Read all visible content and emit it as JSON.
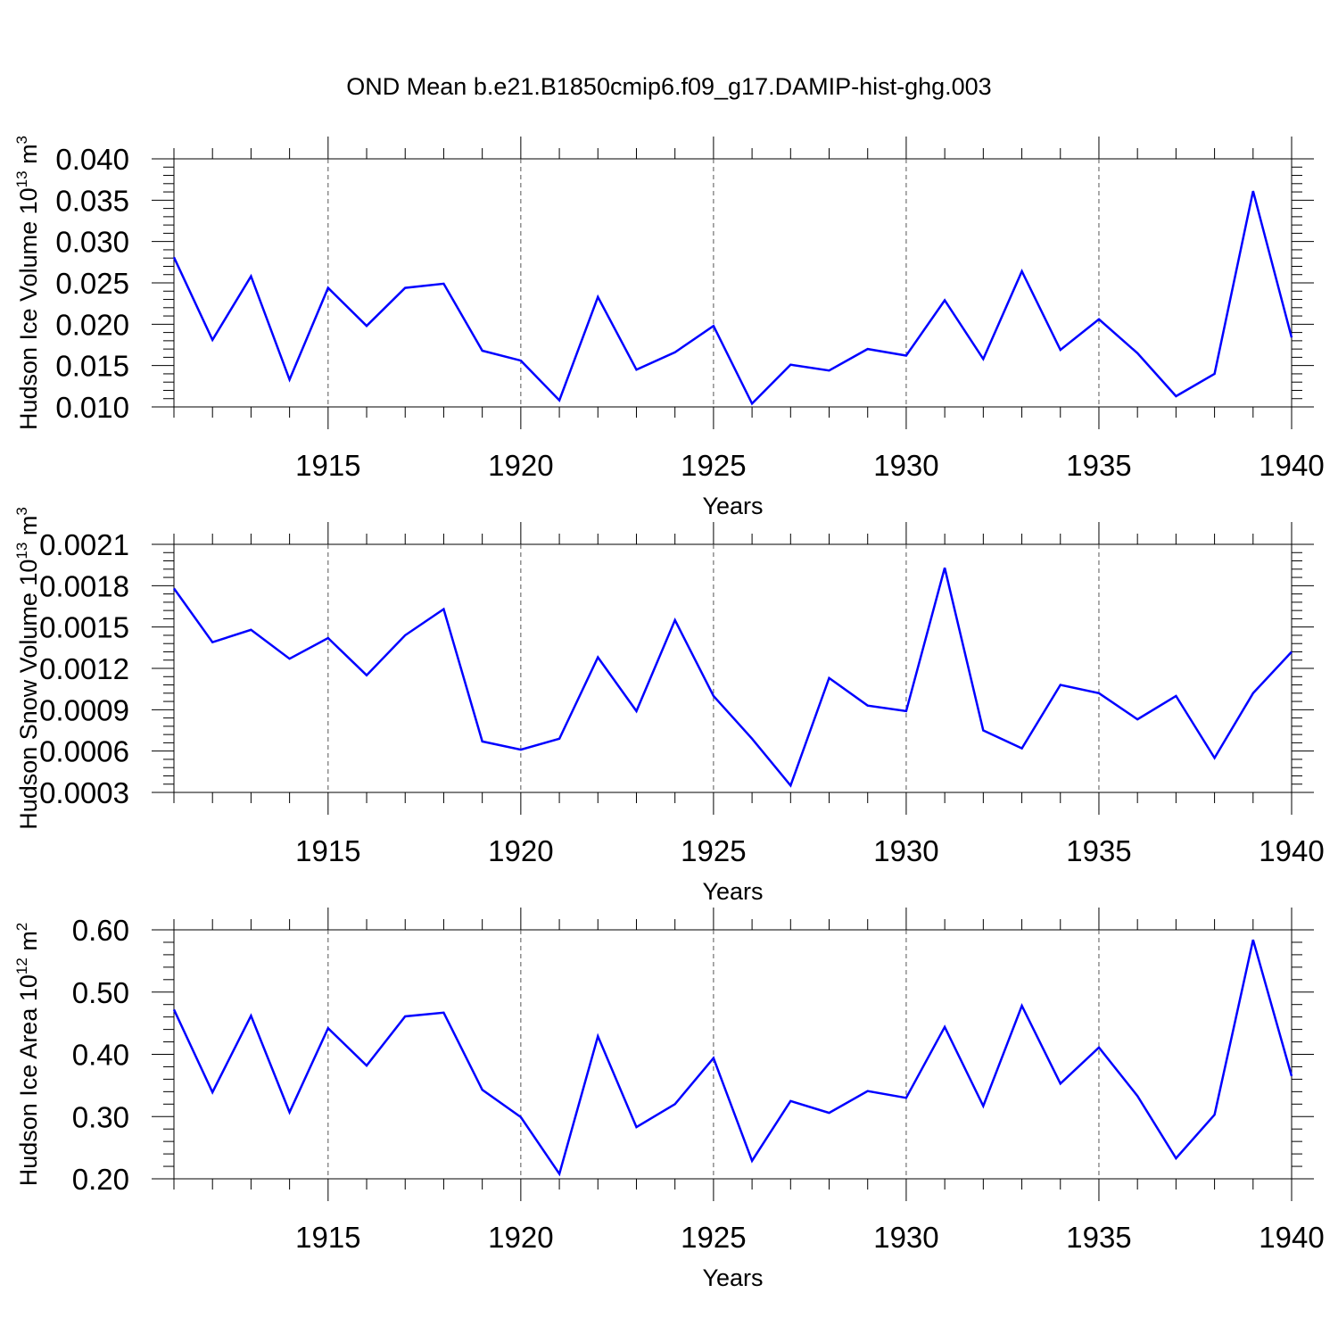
{
  "title": "OND Mean b.e21.B1850cmip6.f09_g17.DAMIP-hist-ghg.003",
  "colors": {
    "line": "#0000ff",
    "axis": "#000000",
    "grid": "#555555"
  },
  "chart_data": [
    {
      "type": "line",
      "ylabel": "Hudson Ice Volume 10",
      "ylabel_exp": "13",
      "ylabel_unit": " m",
      "ylabel_unit_exp": "3",
      "xlabel": "Years",
      "x": [
        1911,
        1912,
        1913,
        1914,
        1915,
        1916,
        1917,
        1918,
        1919,
        1920,
        1921,
        1922,
        1923,
        1924,
        1925,
        1926,
        1927,
        1928,
        1929,
        1930,
        1931,
        1932,
        1933,
        1934,
        1935,
        1936,
        1937,
        1938,
        1939,
        1940
      ],
      "values": [
        0.0281,
        0.0181,
        0.0258,
        0.0133,
        0.0244,
        0.0198,
        0.0244,
        0.0249,
        0.0168,
        0.0156,
        0.0108,
        0.0233,
        0.0145,
        0.0166,
        0.0198,
        0.0104,
        0.0151,
        0.0144,
        0.017,
        0.0162,
        0.0229,
        0.0158,
        0.0264,
        0.0169,
        0.0206,
        0.0165,
        0.0113,
        0.014,
        0.0361,
        0.0184
      ],
      "xlim": [
        1911,
        1940
      ],
      "ylim": [
        0.01,
        0.04
      ],
      "xticks": [
        "1915",
        "1920",
        "1925",
        "1930",
        "1935",
        "1940"
      ],
      "yticks": [
        "0.010",
        "0.015",
        "0.020",
        "0.025",
        "0.030",
        "0.035",
        "0.040"
      ]
    },
    {
      "type": "line",
      "ylabel": "Hudson Snow Volume 10",
      "ylabel_exp": "13",
      "ylabel_unit": " m",
      "ylabel_unit_exp": "3",
      "xlabel": "Years",
      "x": [
        1911,
        1912,
        1913,
        1914,
        1915,
        1916,
        1917,
        1918,
        1919,
        1920,
        1921,
        1922,
        1923,
        1924,
        1925,
        1926,
        1927,
        1928,
        1929,
        1930,
        1931,
        1932,
        1933,
        1934,
        1935,
        1936,
        1937,
        1938,
        1939,
        1940
      ],
      "values": [
        0.00178,
        0.00139,
        0.00148,
        0.00127,
        0.00142,
        0.00115,
        0.00144,
        0.00163,
        0.00067,
        0.00061,
        0.00069,
        0.00128,
        0.00089,
        0.00155,
        0.001,
        0.00069,
        0.00035,
        0.00113,
        0.00093,
        0.00089,
        0.00193,
        0.00075,
        0.00062,
        0.00108,
        0.00102,
        0.00083,
        0.001,
        0.00055,
        0.00102,
        0.00132
      ],
      "xlim": [
        1911,
        1940
      ],
      "ylim": [
        0.0003,
        0.0021
      ],
      "xticks": [
        "1915",
        "1920",
        "1925",
        "1930",
        "1935",
        "1940"
      ],
      "yticks": [
        "0.0003",
        "0.0006",
        "0.0009",
        "0.0012",
        "0.0015",
        "0.0018",
        "0.0021"
      ]
    },
    {
      "type": "line",
      "ylabel": "Hudson Ice Area 10",
      "ylabel_exp": "12",
      "ylabel_unit": " m",
      "ylabel_unit_exp": "2",
      "xlabel": "Years",
      "x": [
        1911,
        1912,
        1913,
        1914,
        1915,
        1916,
        1917,
        1918,
        1919,
        1920,
        1921,
        1922,
        1923,
        1924,
        1925,
        1926,
        1927,
        1928,
        1929,
        1930,
        1931,
        1932,
        1933,
        1934,
        1935,
        1936,
        1937,
        1938,
        1939,
        1940
      ],
      "values": [
        0.472,
        0.339,
        0.462,
        0.307,
        0.442,
        0.382,
        0.461,
        0.467,
        0.343,
        0.299,
        0.208,
        0.429,
        0.283,
        0.32,
        0.394,
        0.229,
        0.325,
        0.306,
        0.341,
        0.33,
        0.444,
        0.317,
        0.478,
        0.353,
        0.411,
        0.333,
        0.233,
        0.303,
        0.584,
        0.365
      ],
      "xlim": [
        1911,
        1940
      ],
      "ylim": [
        0.2,
        0.6
      ],
      "xticks": [
        "1915",
        "1920",
        "1925",
        "1930",
        "1935",
        "1940"
      ],
      "yticks": [
        "0.20",
        "0.30",
        "0.40",
        "0.50",
        "0.60"
      ]
    }
  ]
}
